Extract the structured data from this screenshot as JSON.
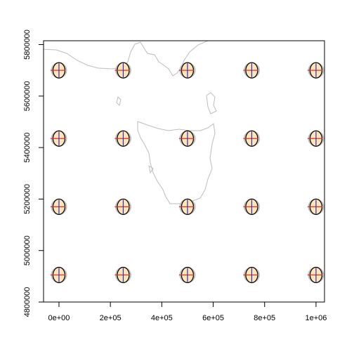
{
  "chart_data": {
    "type": "scatter",
    "x": [
      0,
      250000,
      500000,
      750000,
      1000000,
      0,
      250000,
      500000,
      750000,
      1000000,
      0,
      250000,
      500000,
      750000,
      1000000,
      0,
      250000,
      500000,
      750000,
      1000000
    ],
    "y": [
      5700000,
      5700000,
      5700000,
      5700000,
      5700000,
      5435000,
      5435000,
      5435000,
      5435000,
      5435000,
      5170000,
      5170000,
      5170000,
      5170000,
      5170000,
      4905000,
      4905000,
      4905000,
      4905000,
      4905000
    ],
    "xlim": [
      -60000,
      1033000
    ],
    "ylim": [
      4800000,
      5815000
    ],
    "xticks": [
      {
        "value": 0,
        "label": "0e+00"
      },
      {
        "value": 200000,
        "label": "2e+05"
      },
      {
        "value": 400000,
        "label": "4e+05"
      },
      {
        "value": 600000,
        "label": "6e+05"
      },
      {
        "value": 800000,
        "label": "8e+05"
      },
      {
        "value": 1000000,
        "label": "1e+06"
      }
    ],
    "yticks": [
      4800000,
      5000000,
      5200000,
      5400000,
      5600000,
      5800000
    ]
  }
}
